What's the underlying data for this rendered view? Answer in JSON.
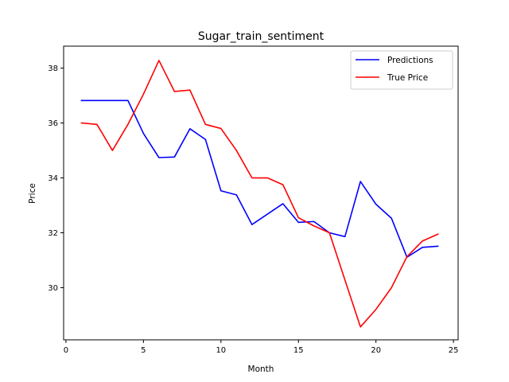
{
  "chart_data": {
    "type": "line",
    "title": "Sugar_train_sentiment",
    "xlabel": "Month",
    "ylabel": "Price",
    "xlim": [
      -0.15,
      25.3
    ],
    "ylim": [
      28.1,
      38.8
    ],
    "xticks": [
      0,
      5,
      10,
      15,
      20,
      25
    ],
    "yticks": [
      30,
      32,
      34,
      36,
      38
    ],
    "grid": false,
    "legend_position": "top-right",
    "x": [
      1,
      2,
      3,
      4,
      5,
      6,
      7,
      8,
      9,
      10,
      11,
      12,
      13,
      14,
      15,
      16,
      17,
      18,
      19,
      20,
      21,
      22,
      23,
      24
    ],
    "series": [
      {
        "name": "Predictions",
        "color": "#0000ff",
        "values": [
          36.82,
          36.82,
          36.82,
          36.82,
          35.62,
          34.74,
          34.76,
          35.79,
          35.4,
          33.53,
          33.38,
          32.3,
          32.68,
          33.06,
          32.38,
          32.41,
          32.0,
          31.86,
          33.87,
          33.04,
          32.53,
          31.11,
          31.47,
          31.51
        ]
      },
      {
        "name": "True Price",
        "color": "#ff0000",
        "values": [
          36.0,
          35.95,
          35.0,
          35.95,
          37.05,
          38.28,
          37.15,
          37.2,
          35.95,
          35.8,
          35.0,
          34.0,
          34.0,
          33.75,
          32.55,
          32.25,
          32.0,
          30.28,
          28.57,
          29.21,
          30.0,
          31.13,
          31.7,
          31.95
        ]
      }
    ]
  }
}
